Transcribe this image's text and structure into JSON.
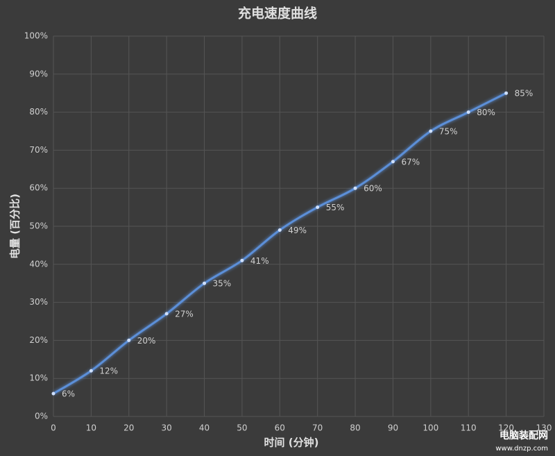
{
  "chart_data": {
    "type": "line",
    "title": "充电速度曲线",
    "x_label": "时间 (分钟)",
    "y_label": "电量 (百分比)",
    "x": [
      0,
      10,
      20,
      30,
      40,
      50,
      60,
      70,
      80,
      90,
      100,
      110,
      120
    ],
    "series": [
      {
        "name": "电量",
        "color": "#5b8fd8",
        "values": [
          6,
          12,
          20,
          27,
          35,
          41,
          49,
          55,
          60,
          67,
          75,
          80,
          85
        ],
        "value_labels": [
          "6%",
          "12%",
          "20%",
          "27%",
          "35%",
          "41%",
          "49%",
          "55%",
          "60%",
          "67%",
          "75%",
          "80%",
          "85%"
        ]
      }
    ],
    "xlim": [
      0,
      130
    ],
    "xticks": [
      0,
      10,
      20,
      30,
      40,
      50,
      60,
      70,
      80,
      90,
      100,
      110,
      120,
      130
    ],
    "ylim": [
      0,
      100
    ],
    "yticks": [
      {
        "value": 0,
        "label": "0%"
      },
      {
        "value": 10,
        "label": "10%"
      },
      {
        "value": 20,
        "label": "20%"
      },
      {
        "value": 30,
        "label": "30%"
      },
      {
        "value": 40,
        "label": "40%"
      },
      {
        "value": 50,
        "label": "50%"
      },
      {
        "value": 60,
        "label": "60%"
      },
      {
        "value": 70,
        "label": "70%"
      },
      {
        "value": 80,
        "label": "80%"
      },
      {
        "value": 90,
        "label": "90%"
      },
      {
        "value": 100,
        "label": "100%"
      }
    ],
    "grid": true,
    "watermark": {
      "name": "电脑装配网",
      "url": "www.dnzp.com"
    }
  }
}
